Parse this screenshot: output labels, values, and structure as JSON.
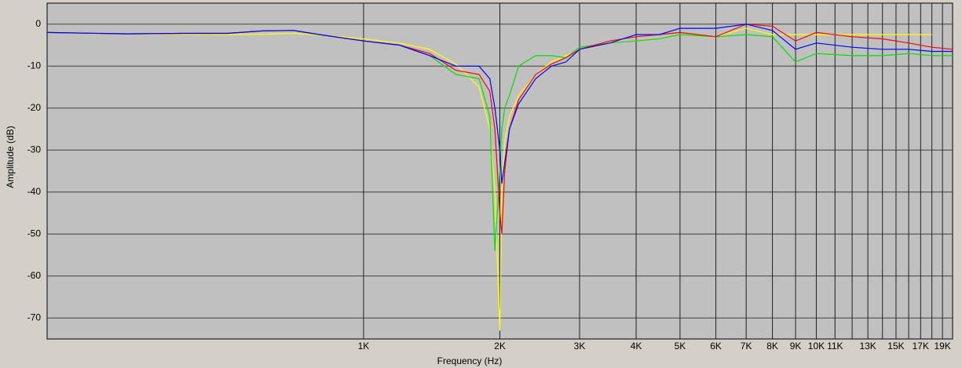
{
  "chart_data": {
    "type": "line",
    "x_label": "Frequency (Hz)",
    "y_label": "Amplitude (dB)",
    "log_x": true,
    "grid": true,
    "background": "#c0c0c0",
    "xlim": [
      200,
      20000
    ],
    "ylim": [
      -75,
      5
    ],
    "xticks": [
      {
        "value": 1000,
        "label": "1K"
      },
      {
        "value": 2000,
        "label": "2K"
      },
      {
        "value": 3000,
        "label": "3K"
      },
      {
        "value": 4000,
        "label": "4K"
      },
      {
        "value": 5000,
        "label": "5K"
      },
      {
        "value": 6000,
        "label": "6K"
      },
      {
        "value": 7000,
        "label": "7K"
      },
      {
        "value": 8000,
        "label": "8K"
      },
      {
        "value": 9000,
        "label": "9K"
      },
      {
        "value": 10000,
        "label": "10K"
      },
      {
        "value": 11000,
        "label": "11K"
      },
      {
        "value": 12000,
        "label": null
      },
      {
        "value": 13000,
        "label": "13K"
      },
      {
        "value": 14000,
        "label": null
      },
      {
        "value": 15000,
        "label": "15K"
      },
      {
        "value": 16000,
        "label": null
      },
      {
        "value": 17000,
        "label": "17K"
      },
      {
        "value": 18000,
        "label": null
      },
      {
        "value": 19000,
        "label": "19K"
      }
    ],
    "yticks": [
      0,
      -10,
      -20,
      -30,
      -40,
      -50,
      -60,
      -70
    ],
    "x": [
      200,
      300,
      400,
      500,
      600,
      700,
      800,
      1000,
      1200,
      1400,
      1600,
      1800,
      1900,
      1950,
      2000,
      2020,
      2050,
      2100,
      2200,
      2400,
      2600,
      2800,
      3000,
      3500,
      4000,
      4500,
      5000,
      6000,
      7000,
      8000,
      9000,
      10000,
      12000,
      14000,
      16000,
      18000,
      20000
    ],
    "series": [
      {
        "color": "#ffff00",
        "values": [
          -2,
          -2.3,
          -2.4,
          -2.5,
          -2.4,
          -2.2,
          -2.6,
          -3.5,
          -4.5,
          -6,
          -9.5,
          -15,
          -25,
          -40,
          -73,
          -40,
          -28,
          -22,
          -17,
          -12,
          -9,
          -7.5,
          -6,
          -4.5,
          -4,
          -3.5,
          -2.5,
          -3,
          -1,
          -2.5,
          -2.5,
          -2.5,
          -2.5,
          -2.5,
          -2.5,
          -2.5,
          null
        ]
      },
      {
        "color": "#00e000",
        "values": [
          -2,
          -2.3,
          -2.2,
          -2.2,
          -1.6,
          -1.5,
          -2.5,
          -4,
          -5,
          -7.5,
          -12,
          -13,
          -22,
          -54,
          -35,
          -25,
          -20,
          -17,
          -10,
          -7.5,
          -7.5,
          -8,
          -5.5,
          -4.5,
          -4,
          -3.5,
          -2.5,
          -3,
          -2.5,
          -3,
          -9,
          -7,
          -7.5,
          -7.5,
          -7,
          -7.5,
          -7.5
        ]
      },
      {
        "color": "#ff0000",
        "values": [
          -2,
          -2.3,
          -2.2,
          -2.2,
          -1.6,
          -1.5,
          -2.5,
          -4,
          -5,
          -7,
          -11,
          -12,
          -16,
          -25,
          -45,
          -50,
          -35,
          -25,
          -18,
          -12,
          -9.5,
          -8,
          -6,
          -4,
          -3,
          -2.5,
          -2,
          -3,
          0,
          -0.5,
          -4,
          -2,
          -3,
          -3.5,
          -4.5,
          -5.5,
          -6
        ]
      },
      {
        "color": "#0000ff",
        "values": [
          -2,
          -2.3,
          -2.2,
          -2.2,
          -1.6,
          -1.5,
          -2.5,
          -4,
          -5,
          -7.5,
          -10,
          -10,
          -13,
          -20,
          -30,
          -38,
          -33,
          -25,
          -19,
          -13,
          -10,
          -9,
          -6,
          -4.5,
          -2.5,
          -2.5,
          -1,
          -1,
          0,
          -1.5,
          -6,
          -4.5,
          -5.5,
          -6,
          -6,
          -6.5,
          -6.5
        ]
      }
    ]
  }
}
